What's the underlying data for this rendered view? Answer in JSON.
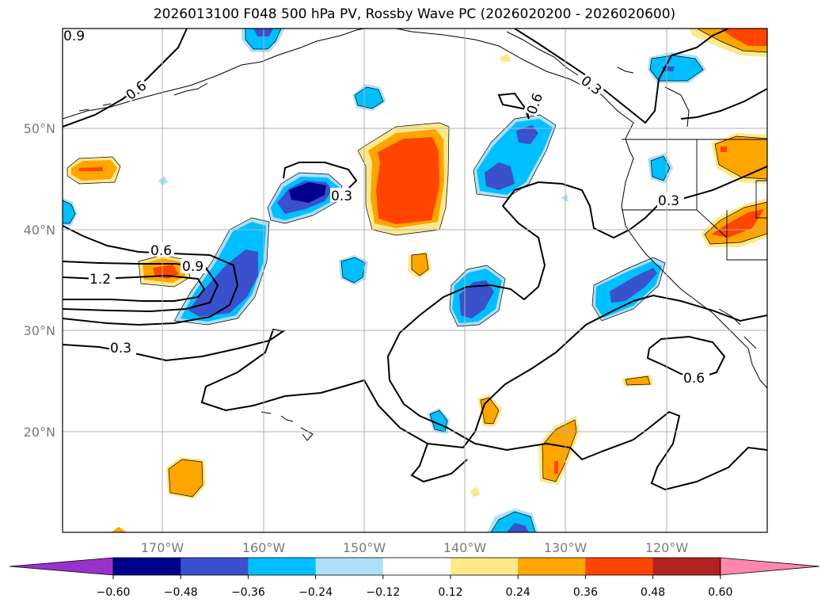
{
  "title": "2026013100 F048 500 hPa PV, Rossby Wave PC (2026020200 - 2026020600)",
  "map": {
    "lon_labels": [
      "170°W",
      "160°W",
      "150°W",
      "140°W",
      "130°W",
      "120°W"
    ],
    "lat_labels": [
      "50°N",
      "40°N",
      "30°N",
      "20°N"
    ],
    "contour_labels": [
      "0.9",
      "0.6",
      "0.3",
      "0.6",
      "0.6",
      "0.9",
      "1.2",
      "0.3",
      "0.3",
      "0.3",
      "0.6"
    ]
  },
  "colorbar": {
    "ticks": [
      "−0.60",
      "−0.48",
      "−0.36",
      "−0.24",
      "−0.12",
      "0.12",
      "0.24",
      "0.36",
      "0.48",
      "0.60"
    ],
    "colors": [
      "#9932CC",
      "#00008B",
      "#3A50CC",
      "#00BFFF",
      "#ADE0F8",
      "#FFFFFF",
      "#FFE88A",
      "#FFA500",
      "#FF4500",
      "#B22222",
      "#FF88AA"
    ]
  },
  "colors": {
    "deep_blue": "#00008B",
    "blue": "#3A50CC",
    "cyan": "#00BFFF",
    "light_blue": "#ADE0F8",
    "yellow": "#FFE88A",
    "orange": "#FFA500",
    "red_orange": "#FF4500",
    "grid": "#b0b0b0"
  }
}
